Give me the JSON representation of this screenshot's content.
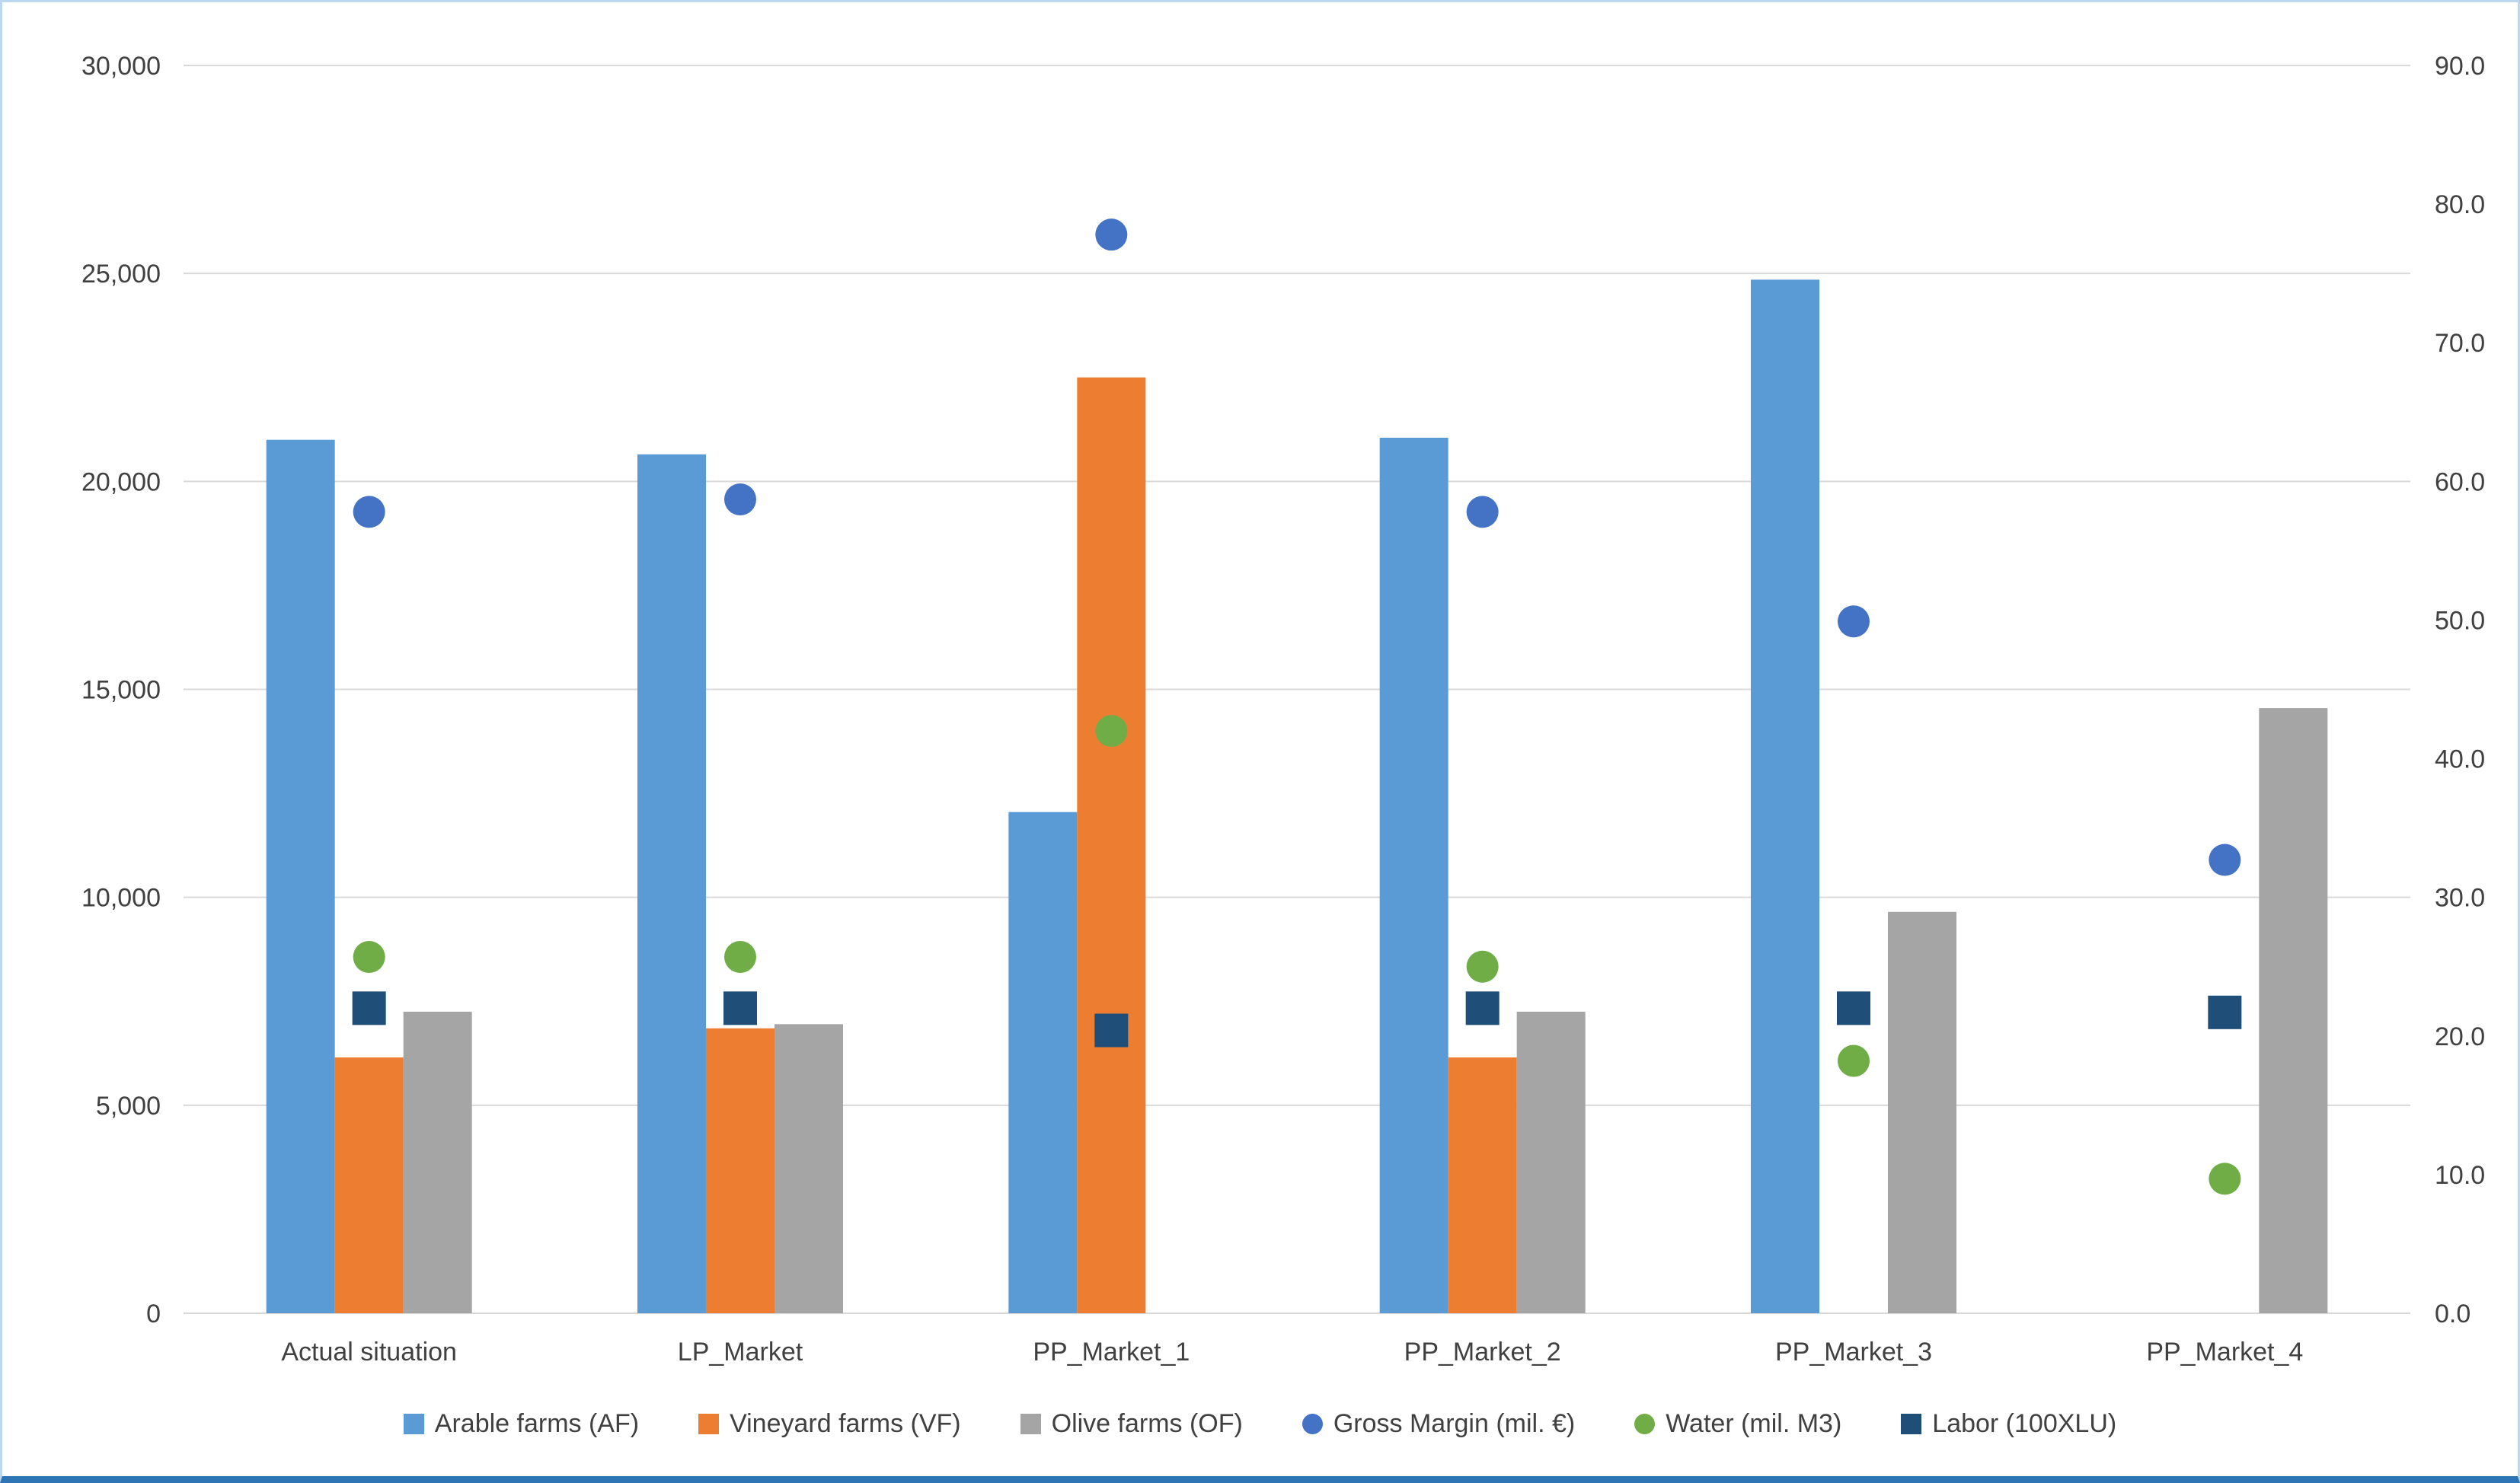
{
  "chart_data": {
    "type": "combo-bar-scatter-dual-axis",
    "title": "",
    "categories": [
      "Actual situation",
      "LP_Market",
      "PP_Market_1",
      "PP_Market_2",
      "PP_Market_3",
      "PP_Market_4"
    ],
    "series": [
      {
        "name": "Arable farms (AF)",
        "type": "bar",
        "axis": "left",
        "color": "#5B9BD5",
        "values": [
          21000,
          20650,
          12050,
          21050,
          24850,
          0
        ]
      },
      {
        "name": "Vineyard farms (VF)",
        "type": "bar",
        "axis": "left",
        "color": "#ED7D31",
        "values": [
          6150,
          6850,
          22500,
          6150,
          0,
          0
        ]
      },
      {
        "name": "Olive farms (OF)",
        "type": "bar",
        "axis": "left",
        "color": "#A5A5A5",
        "values": [
          7250,
          6950,
          0,
          7250,
          9650,
          14550
        ]
      },
      {
        "name": "Gross Margin (mil. €)",
        "type": "scatter",
        "marker": "circle",
        "axis": "right",
        "color": "#4472C4",
        "values": [
          57.8,
          58.7,
          77.8,
          57.8,
          49.9,
          32.7
        ]
      },
      {
        "name": "Water (mil. M3)",
        "type": "scatter",
        "marker": "circle",
        "axis": "right",
        "color": "#70AD47",
        "values": [
          25.7,
          25.7,
          42.0,
          25.0,
          18.2,
          9.7
        ]
      },
      {
        "name": "Labor (100XLU)",
        "type": "scatter",
        "marker": "square",
        "axis": "right",
        "color": "#1F4E79",
        "values": [
          22.0,
          22.0,
          20.4,
          22.0,
          22.0,
          21.7
        ]
      }
    ],
    "left_axis": {
      "min": 0,
      "max": 30000,
      "step": 5000,
      "ticks": [
        "0",
        "5,000",
        "10,000",
        "15,000",
        "20,000",
        "25,000",
        "30,000"
      ]
    },
    "right_axis": {
      "min": 0,
      "max": 90,
      "step": 10,
      "ticks": [
        "0.0",
        "10.0",
        "20.0",
        "30.0",
        "40.0",
        "50.0",
        "60.0",
        "70.0",
        "80.0",
        "90.0"
      ]
    },
    "grid": true,
    "gridline_color": "#D9D9D9",
    "text_color": "#404040",
    "legend_position": "bottom",
    "legend": [
      "Arable farms (AF)",
      "Vineyard farms (VF)",
      "Olive farms (OF)",
      "Gross Margin (mil. €)",
      "Water (mil. M3)",
      "Labor (100XLU)"
    ]
  }
}
